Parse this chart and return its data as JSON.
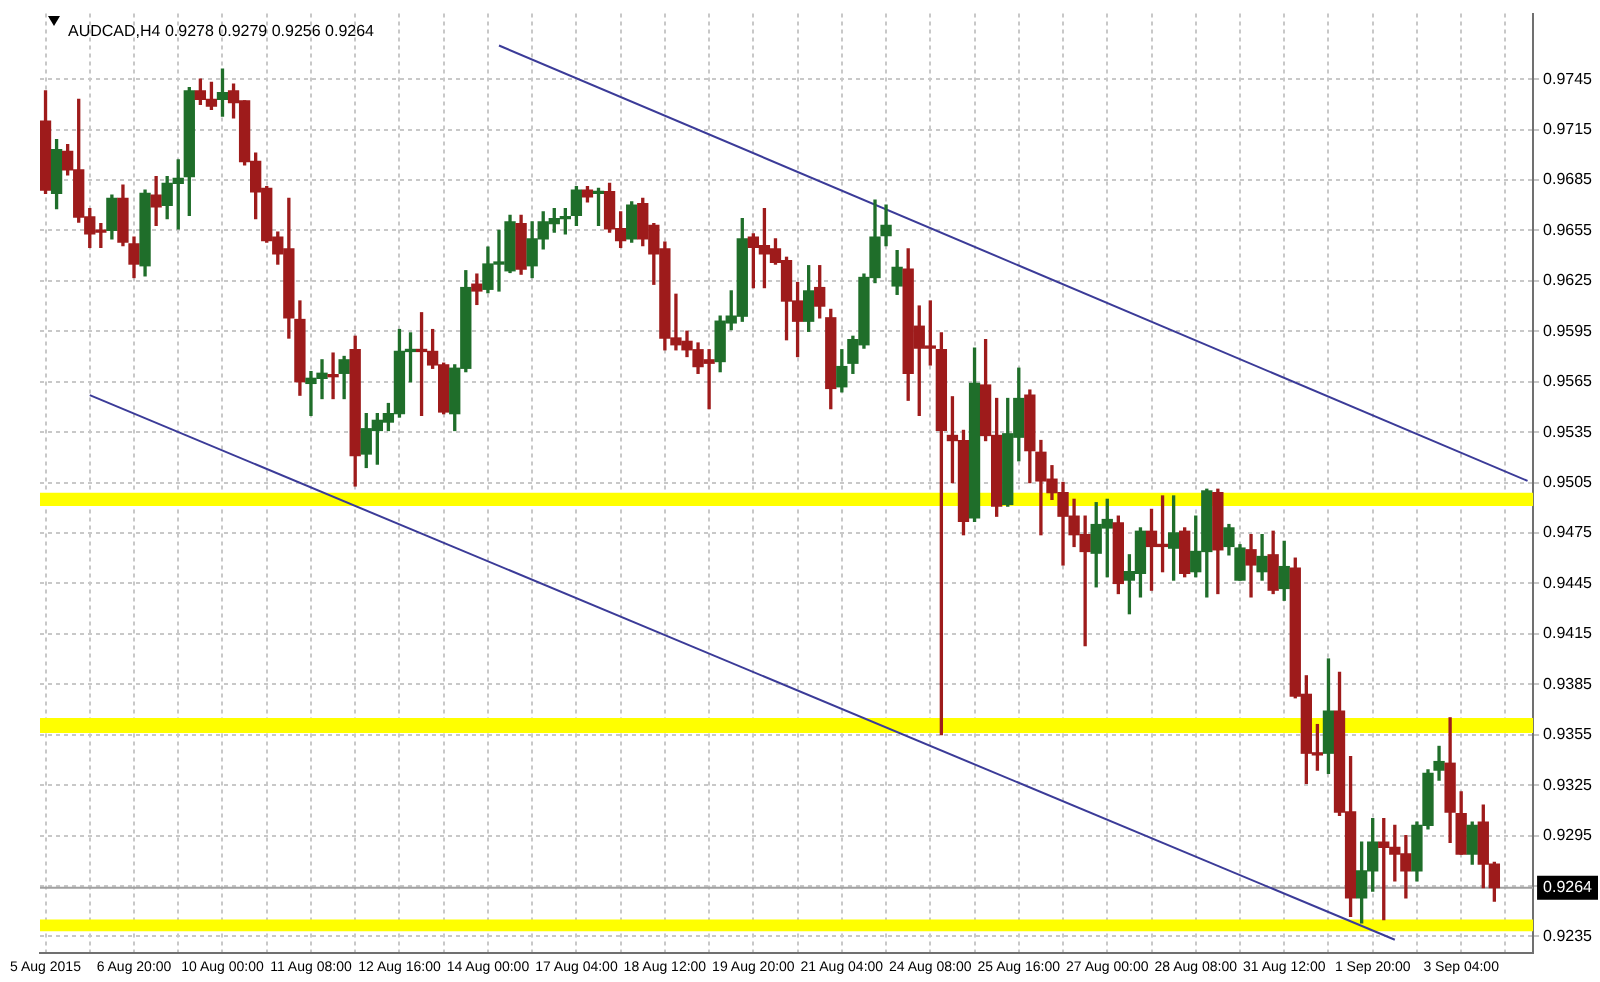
{
  "chart_data": {
    "type": "candlestick",
    "title": "AUDCAD,H4 0.9278 0.9279 0.9256 0.9264",
    "categories": [
      "5 Aug 2015",
      null,
      null,
      null,
      null,
      null,
      null,
      null,
      "6 Aug 20:00",
      null,
      null,
      null,
      null,
      null,
      null,
      null,
      "10 Aug 00:00",
      null,
      null,
      null,
      null,
      null,
      null,
      null,
      "11 Aug 08:00",
      null,
      null,
      null,
      null,
      null,
      null,
      null,
      "12 Aug 16:00",
      null,
      null,
      null,
      null,
      null,
      null,
      null,
      "14 Aug 00:00",
      null,
      null,
      null,
      null,
      null,
      null,
      null,
      "17 Aug 04:00",
      null,
      null,
      null,
      null,
      null,
      null,
      null,
      "18 Aug 12:00",
      null,
      null,
      null,
      null,
      null,
      null,
      null,
      "19 Aug 20:00",
      null,
      null,
      null,
      null,
      null,
      null,
      null,
      "21 Aug 04:00",
      null,
      null,
      null,
      null,
      null,
      null,
      null,
      "24 Aug 08:00",
      null,
      null,
      null,
      null,
      null,
      null,
      null,
      "25 Aug 16:00",
      null,
      null,
      null,
      null,
      null,
      null,
      null,
      "27 Aug 00:00",
      null,
      null,
      null,
      null,
      null,
      null,
      null,
      "28 Aug 08:00",
      null,
      null,
      null,
      null,
      null,
      null,
      null,
      "31 Aug 12:00",
      null,
      null,
      null,
      null,
      null,
      null,
      null,
      "1 Sep 20:00",
      null,
      null,
      null,
      null,
      null,
      null,
      null,
      "3 Sep 04:00",
      null,
      null,
      null,
      null,
      null,
      null
    ],
    "ohlc": [
      [
        0.972,
        0.9738,
        0.9677,
        0.9679
      ],
      [
        0.9677,
        0.9709,
        0.9668,
        0.9703
      ],
      [
        0.9702,
        0.9706,
        0.9688,
        0.9691
      ],
      [
        0.9691,
        0.9733,
        0.966,
        0.9663
      ],
      [
        0.9663,
        0.9668,
        0.9645,
        0.9653
      ],
      [
        0.9655,
        0.9659,
        0.9645,
        0.9654
      ],
      [
        0.9655,
        0.9676,
        0.965,
        0.9674
      ],
      [
        0.9674,
        0.9682,
        0.9646,
        0.9648
      ],
      [
        0.9647,
        0.9651,
        0.9627,
        0.9635
      ],
      [
        0.9634,
        0.9679,
        0.9628,
        0.9677
      ],
      [
        0.9676,
        0.9687,
        0.9658,
        0.9669
      ],
      [
        0.967,
        0.9687,
        0.9662,
        0.9683
      ],
      [
        0.9683,
        0.9697,
        0.9656,
        0.9686
      ],
      [
        0.9687,
        0.974,
        0.9664,
        0.9738
      ],
      [
        0.9738,
        0.9745,
        0.973,
        0.9733
      ],
      [
        0.9733,
        0.9743,
        0.9727,
        0.9729
      ],
      [
        0.9733,
        0.9751,
        0.9723,
        0.9737
      ],
      [
        0.9738,
        0.9742,
        0.9722,
        0.9731
      ],
      [
        0.9732,
        0.9732,
        0.9694,
        0.9696
      ],
      [
        0.9696,
        0.9701,
        0.9662,
        0.9678
      ],
      [
        0.968,
        0.9681,
        0.9648,
        0.9649
      ],
      [
        0.9651,
        0.9654,
        0.9635,
        0.9641
      ],
      [
        0.9644,
        0.9674,
        0.9591,
        0.9603
      ],
      [
        0.9602,
        0.9613,
        0.9557,
        0.9565
      ],
      [
        0.9564,
        0.9571,
        0.9545,
        0.9567
      ],
      [
        0.9567,
        0.9578,
        0.9555,
        0.957
      ],
      [
        0.9569,
        0.9582,
        0.9555,
        0.9568
      ],
      [
        0.957,
        0.958,
        0.9555,
        0.9578
      ],
      [
        0.9584,
        0.9592,
        0.9503,
        0.9521
      ],
      [
        0.9522,
        0.9546,
        0.9514,
        0.9537
      ],
      [
        0.9536,
        0.9546,
        0.9516,
        0.9542
      ],
      [
        0.9541,
        0.9552,
        0.9536,
        0.9546
      ],
      [
        0.9546,
        0.9596,
        0.9544,
        0.9583
      ],
      [
        0.9583,
        0.9594,
        0.9565,
        0.9584
      ],
      [
        0.9584,
        0.9606,
        0.9545,
        0.9583
      ],
      [
        0.9583,
        0.9596,
        0.9573,
        0.9575
      ],
      [
        0.9575,
        0.9576,
        0.9546,
        0.9547
      ],
      [
        0.9546,
        0.9575,
        0.9536,
        0.9573
      ],
      [
        0.9573,
        0.9631,
        0.9571,
        0.9621
      ],
      [
        0.9623,
        0.9629,
        0.9611,
        0.9619
      ],
      [
        0.962,
        0.9645,
        0.9618,
        0.9635
      ],
      [
        0.9635,
        0.9655,
        0.9619,
        0.9636
      ],
      [
        0.9631,
        0.9664,
        0.963,
        0.966
      ],
      [
        0.9659,
        0.9664,
        0.9629,
        0.9632
      ],
      [
        0.9634,
        0.966,
        0.9627,
        0.965
      ],
      [
        0.965,
        0.9666,
        0.9644,
        0.966
      ],
      [
        0.9659,
        0.9668,
        0.9654,
        0.9662
      ],
      [
        0.9662,
        0.9668,
        0.9653,
        0.9663
      ],
      [
        0.9664,
        0.9681,
        0.9658,
        0.9679
      ],
      [
        0.9679,
        0.9681,
        0.9672,
        0.9675
      ],
      [
        0.9677,
        0.968,
        0.9658,
        0.9678
      ],
      [
        0.9678,
        0.9683,
        0.9654,
        0.9656
      ],
      [
        0.9656,
        0.9666,
        0.9645,
        0.9649
      ],
      [
        0.965,
        0.9672,
        0.9648,
        0.967
      ],
      [
        0.9671,
        0.9674,
        0.9646,
        0.965
      ],
      [
        0.9658,
        0.9659,
        0.9623,
        0.9641
      ],
      [
        0.9644,
        0.9648,
        0.9584,
        0.9591
      ],
      [
        0.9591,
        0.9617,
        0.9584,
        0.9587
      ],
      [
        0.9589,
        0.9595,
        0.958,
        0.9584
      ],
      [
        0.9584,
        0.9588,
        0.957,
        0.9574
      ],
      [
        0.9578,
        0.9584,
        0.9549,
        0.9576
      ],
      [
        0.9577,
        0.9604,
        0.9571,
        0.9601
      ],
      [
        0.96,
        0.9619,
        0.9596,
        0.9604
      ],
      [
        0.9604,
        0.9662,
        0.9601,
        0.965
      ],
      [
        0.9651,
        0.9653,
        0.9621,
        0.9645
      ],
      [
        0.9646,
        0.9668,
        0.9621,
        0.9641
      ],
      [
        0.9644,
        0.965,
        0.9635,
        0.9636
      ],
      [
        0.9637,
        0.9639,
        0.959,
        0.9613
      ],
      [
        0.9613,
        0.9624,
        0.958,
        0.9601
      ],
      [
        0.9601,
        0.9634,
        0.9595,
        0.9619
      ],
      [
        0.9621,
        0.9634,
        0.9603,
        0.961
      ],
      [
        0.9603,
        0.9608,
        0.9549,
        0.9561
      ],
      [
        0.9562,
        0.9584,
        0.9559,
        0.9574
      ],
      [
        0.9576,
        0.9592,
        0.957,
        0.959
      ],
      [
        0.9587,
        0.9629,
        0.9585,
        0.9627
      ],
      [
        0.9627,
        0.9673,
        0.9624,
        0.9651
      ],
      [
        0.9652,
        0.967,
        0.9646,
        0.9658
      ],
      [
        0.9622,
        0.9643,
        0.9617,
        0.9633
      ],
      [
        0.9632,
        0.9644,
        0.9554,
        0.957
      ],
      [
        0.9598,
        0.961,
        0.9545,
        0.9585
      ],
      [
        0.9586,
        0.9613,
        0.9575,
        0.9585
      ],
      [
        0.9584,
        0.9594,
        0.9355,
        0.9536
      ],
      [
        0.9533,
        0.9556,
        0.9505,
        0.953
      ],
      [
        0.953,
        0.9536,
        0.9474,
        0.9482
      ],
      [
        0.9484,
        0.9585,
        0.9482,
        0.9564
      ],
      [
        0.9563,
        0.959,
        0.953,
        0.9533
      ],
      [
        0.9533,
        0.9555,
        0.9485,
        0.9491
      ],
      [
        0.9492,
        0.9555,
        0.9491,
        0.9534
      ],
      [
        0.9532,
        0.9573,
        0.9518,
        0.9555
      ],
      [
        0.9557,
        0.956,
        0.9505,
        0.9524
      ],
      [
        0.9523,
        0.953,
        0.9474,
        0.9506
      ],
      [
        0.9507,
        0.9515,
        0.9495,
        0.9499
      ],
      [
        0.9499,
        0.9505,
        0.9456,
        0.9485
      ],
      [
        0.9485,
        0.9495,
        0.9467,
        0.9474
      ],
      [
        0.9474,
        0.9485,
        0.9408,
        0.9464
      ],
      [
        0.9463,
        0.9493,
        0.9443,
        0.948
      ],
      [
        0.9478,
        0.9495,
        0.9449,
        0.9483
      ],
      [
        0.9481,
        0.9485,
        0.9439,
        0.9445
      ],
      [
        0.9447,
        0.9462,
        0.9427,
        0.9452
      ],
      [
        0.9451,
        0.9478,
        0.9437,
        0.9476
      ],
      [
        0.9476,
        0.9489,
        0.9441,
        0.9467
      ],
      [
        0.9468,
        0.9497,
        0.9452,
        0.9467
      ],
      [
        0.9466,
        0.9497,
        0.9447,
        0.9475
      ],
      [
        0.9476,
        0.9478,
        0.9449,
        0.9451
      ],
      [
        0.9452,
        0.9485,
        0.9449,
        0.9464
      ],
      [
        0.9464,
        0.9501,
        0.9437,
        0.95
      ],
      [
        0.9499,
        0.9501,
        0.9439,
        0.9465
      ],
      [
        0.9467,
        0.948,
        0.9462,
        0.9478
      ],
      [
        0.9447,
        0.9468,
        0.9447,
        0.9466
      ],
      [
        0.9465,
        0.9474,
        0.9437,
        0.9456
      ],
      [
        0.9452,
        0.9474,
        0.9447,
        0.9461
      ],
      [
        0.9462,
        0.9476,
        0.9439,
        0.9441
      ],
      [
        0.9442,
        0.947,
        0.9435,
        0.9455
      ],
      [
        0.9454,
        0.946,
        0.9377,
        0.9378
      ],
      [
        0.9379,
        0.939,
        0.9326,
        0.9344
      ],
      [
        0.9344,
        0.9361,
        0.9334,
        0.9343
      ],
      [
        0.9344,
        0.94,
        0.9332,
        0.9369
      ],
      [
        0.9369,
        0.9392,
        0.9307,
        0.9309
      ],
      [
        0.9309,
        0.9342,
        0.9247,
        0.9258
      ],
      [
        0.9258,
        0.9291,
        0.9243,
        0.9274
      ],
      [
        0.9274,
        0.9305,
        0.9262,
        0.9291
      ],
      [
        0.9291,
        0.9305,
        0.9245,
        0.9288
      ],
      [
        0.9288,
        0.9301,
        0.9268,
        0.9284
      ],
      [
        0.9284,
        0.9295,
        0.9258,
        0.9274
      ],
      [
        0.9274,
        0.9303,
        0.9268,
        0.9301
      ],
      [
        0.9301,
        0.9334,
        0.9299,
        0.9332
      ],
      [
        0.9334,
        0.9348,
        0.9328,
        0.9339
      ],
      [
        0.9338,
        0.9365,
        0.9291,
        0.9309
      ],
      [
        0.9308,
        0.9321,
        0.9284,
        0.9284
      ],
      [
        0.9284,
        0.9303,
        0.9278,
        0.9301
      ],
      [
        0.9303,
        0.9313,
        0.9264,
        0.9278
      ],
      [
        0.9278,
        0.9279,
        0.9256,
        0.9264
      ],
      null,
      null,
      null
    ],
    "colors": [
      "#9e1b1b",
      "#1f6e2a",
      "#9e1b1b",
      "#9e1b1b",
      "#9e1b1b",
      "#9e1b1b",
      "#1f6e2a",
      "#9e1b1b",
      "#9e1b1b",
      "#1f6e2a",
      "#9e1b1b",
      "#1f6e2a",
      "#1f6e2a",
      "#1f6e2a",
      "#9e1b1b",
      "#9e1b1b",
      "#1f6e2a",
      "#9e1b1b",
      "#9e1b1b",
      "#9e1b1b",
      "#9e1b1b",
      "#9e1b1b",
      "#9e1b1b",
      "#9e1b1b",
      "#1f6e2a",
      "#1f6e2a",
      "#9e1b1b",
      "#1f6e2a",
      "#9e1b1b",
      "#1f6e2a",
      "#1f6e2a",
      "#1f6e2a",
      "#1f6e2a",
      "#1f6e2a",
      "#9e1b1b",
      "#9e1b1b",
      "#9e1b1b",
      "#1f6e2a",
      "#1f6e2a",
      "#9e1b1b",
      "#1f6e2a",
      "#1f6e2a",
      "#1f6e2a",
      "#9e1b1b",
      "#1f6e2a",
      "#1f6e2a",
      "#1f6e2a",
      "#1f6e2a",
      "#1f6e2a",
      "#9e1b1b",
      "#1f6e2a",
      "#9e1b1b",
      "#9e1b1b",
      "#1f6e2a",
      "#9e1b1b",
      "#9e1b1b",
      "#9e1b1b",
      "#9e1b1b",
      "#9e1b1b",
      "#9e1b1b",
      "#9e1b1b",
      "#1f6e2a",
      "#1f6e2a",
      "#1f6e2a",
      "#9e1b1b",
      "#9e1b1b",
      "#9e1b1b",
      "#9e1b1b",
      "#9e1b1b",
      "#1f6e2a",
      "#9e1b1b",
      "#9e1b1b",
      "#1f6e2a",
      "#1f6e2a",
      "#1f6e2a",
      "#1f6e2a",
      "#1f6e2a",
      "#1f6e2a",
      "#9e1b1b",
      "#9e1b1b",
      "#9e1b1b",
      "#9e1b1b",
      "#9e1b1b",
      "#9e1b1b",
      "#1f6e2a",
      "#9e1b1b",
      "#9e1b1b",
      "#1f6e2a",
      "#1f6e2a",
      "#9e1b1b",
      "#9e1b1b",
      "#9e1b1b",
      "#9e1b1b",
      "#9e1b1b",
      "#9e1b1b",
      "#1f6e2a",
      "#1f6e2a",
      "#9e1b1b",
      "#1f6e2a",
      "#1f6e2a",
      "#9e1b1b",
      "#9e1b1b",
      "#1f6e2a",
      "#9e1b1b",
      "#1f6e2a",
      "#1f6e2a",
      "#9e1b1b",
      "#1f6e2a",
      "#1f6e2a",
      "#9e1b1b",
      "#1f6e2a",
      "#9e1b1b",
      "#1f6e2a",
      "#9e1b1b",
      "#9e1b1b",
      "#9e1b1b",
      "#1f6e2a",
      "#9e1b1b",
      "#9e1b1b",
      "#1f6e2a",
      "#1f6e2a",
      "#9e1b1b",
      "#9e1b1b",
      "#9e1b1b",
      "#1f6e2a",
      "#1f6e2a",
      "#1f6e2a",
      "#9e1b1b",
      "#9e1b1b",
      "#1f6e2a",
      "#9e1b1b",
      "#9e1b1b",
      null,
      null,
      null
    ],
    "series": [
      {
        "type": "line",
        "color": "#3b3b98",
        "values": [
          null,
          null,
          null,
          null,
          null,
          null,
          null,
          null,
          null,
          null,
          null,
          null,
          null,
          null,
          null,
          null,
          null,
          null,
          null,
          null,
          null,
          null,
          null,
          null,
          null,
          null,
          null,
          null,
          null,
          null,
          null,
          null,
          null,
          null,
          null,
          null,
          null,
          null,
          null,
          null,
          null,
          0.9765,
          null,
          null,
          null,
          null,
          null,
          null,
          null,
          null,
          null,
          null,
          null,
          null,
          null,
          null,
          null,
          null,
          null,
          null,
          null,
          null,
          null,
          null,
          null,
          null,
          null,
          null,
          null,
          null,
          null,
          null,
          null,
          null,
          null,
          null,
          null,
          null,
          null,
          null,
          null,
          null,
          null,
          null,
          null,
          null,
          null,
          null,
          null,
          null,
          null,
          null,
          null,
          null,
          null,
          null,
          null,
          null,
          null,
          null,
          null,
          null,
          null,
          null,
          null,
          null,
          null,
          null,
          null,
          null,
          null,
          null,
          null,
          null,
          null,
          null,
          null,
          null,
          null,
          null,
          null,
          null,
          null,
          null,
          null,
          null,
          null,
          null,
          null,
          null,
          null,
          null,
          null,
          null,
          0.9506
        ]
      },
      {
        "type": "line",
        "color": "#3b3b98",
        "values": [
          null,
          null,
          null,
          null,
          0.9557,
          null,
          null,
          null,
          null,
          null,
          null,
          null,
          null,
          null,
          null,
          null,
          null,
          null,
          null,
          null,
          null,
          null,
          null,
          null,
          null,
          null,
          null,
          null,
          null,
          null,
          null,
          null,
          null,
          null,
          null,
          null,
          null,
          null,
          null,
          null,
          null,
          null,
          null,
          null,
          null,
          null,
          null,
          null,
          null,
          null,
          null,
          null,
          null,
          null,
          null,
          null,
          null,
          null,
          null,
          null,
          null,
          null,
          null,
          null,
          null,
          null,
          null,
          null,
          null,
          null,
          null,
          null,
          null,
          null,
          null,
          null,
          null,
          null,
          null,
          null,
          null,
          null,
          null,
          null,
          null,
          null,
          null,
          null,
          null,
          null,
          null,
          null,
          null,
          null,
          null,
          null,
          null,
          null,
          null,
          null,
          null,
          null,
          null,
          null,
          null,
          null,
          null,
          null,
          null,
          null,
          null,
          null,
          null,
          null,
          null,
          null,
          null,
          null,
          null,
          null,
          null,
          null,
          0.9233,
          null,
          null,
          null,
          null,
          null,
          null,
          null,
          null,
          null,
          null,
          null,
          null
        ]
      }
    ],
    "ylim": [
      0.9225,
      0.9784
    ],
    "yticks": [
      0.9235,
      {
        "value": 0.9265,
        "label": null
      },
      0.9295,
      0.9325,
      0.9355,
      0.9385,
      0.9415,
      0.9445,
      0.9475,
      0.9505,
      0.9535,
      0.9565,
      0.9595,
      0.9625,
      0.9655,
      0.9685,
      0.9715,
      0.9745
    ],
    "grid": true,
    "bands": [
      {
        "axis": "y",
        "from": 0.9491,
        "to": 0.9499,
        "color": "#ffff00"
      },
      {
        "axis": "y",
        "from": 0.9356,
        "to": 0.9365,
        "color": "#ffff00"
      },
      {
        "axis": "y",
        "from": 0.9238,
        "to": 0.9245,
        "color": "#ffff00"
      }
    ],
    "ref_lines": [
      {
        "axis": "y",
        "value": 0.9264,
        "label": "0.9264",
        "color": "#a0a0a0"
      }
    ]
  }
}
